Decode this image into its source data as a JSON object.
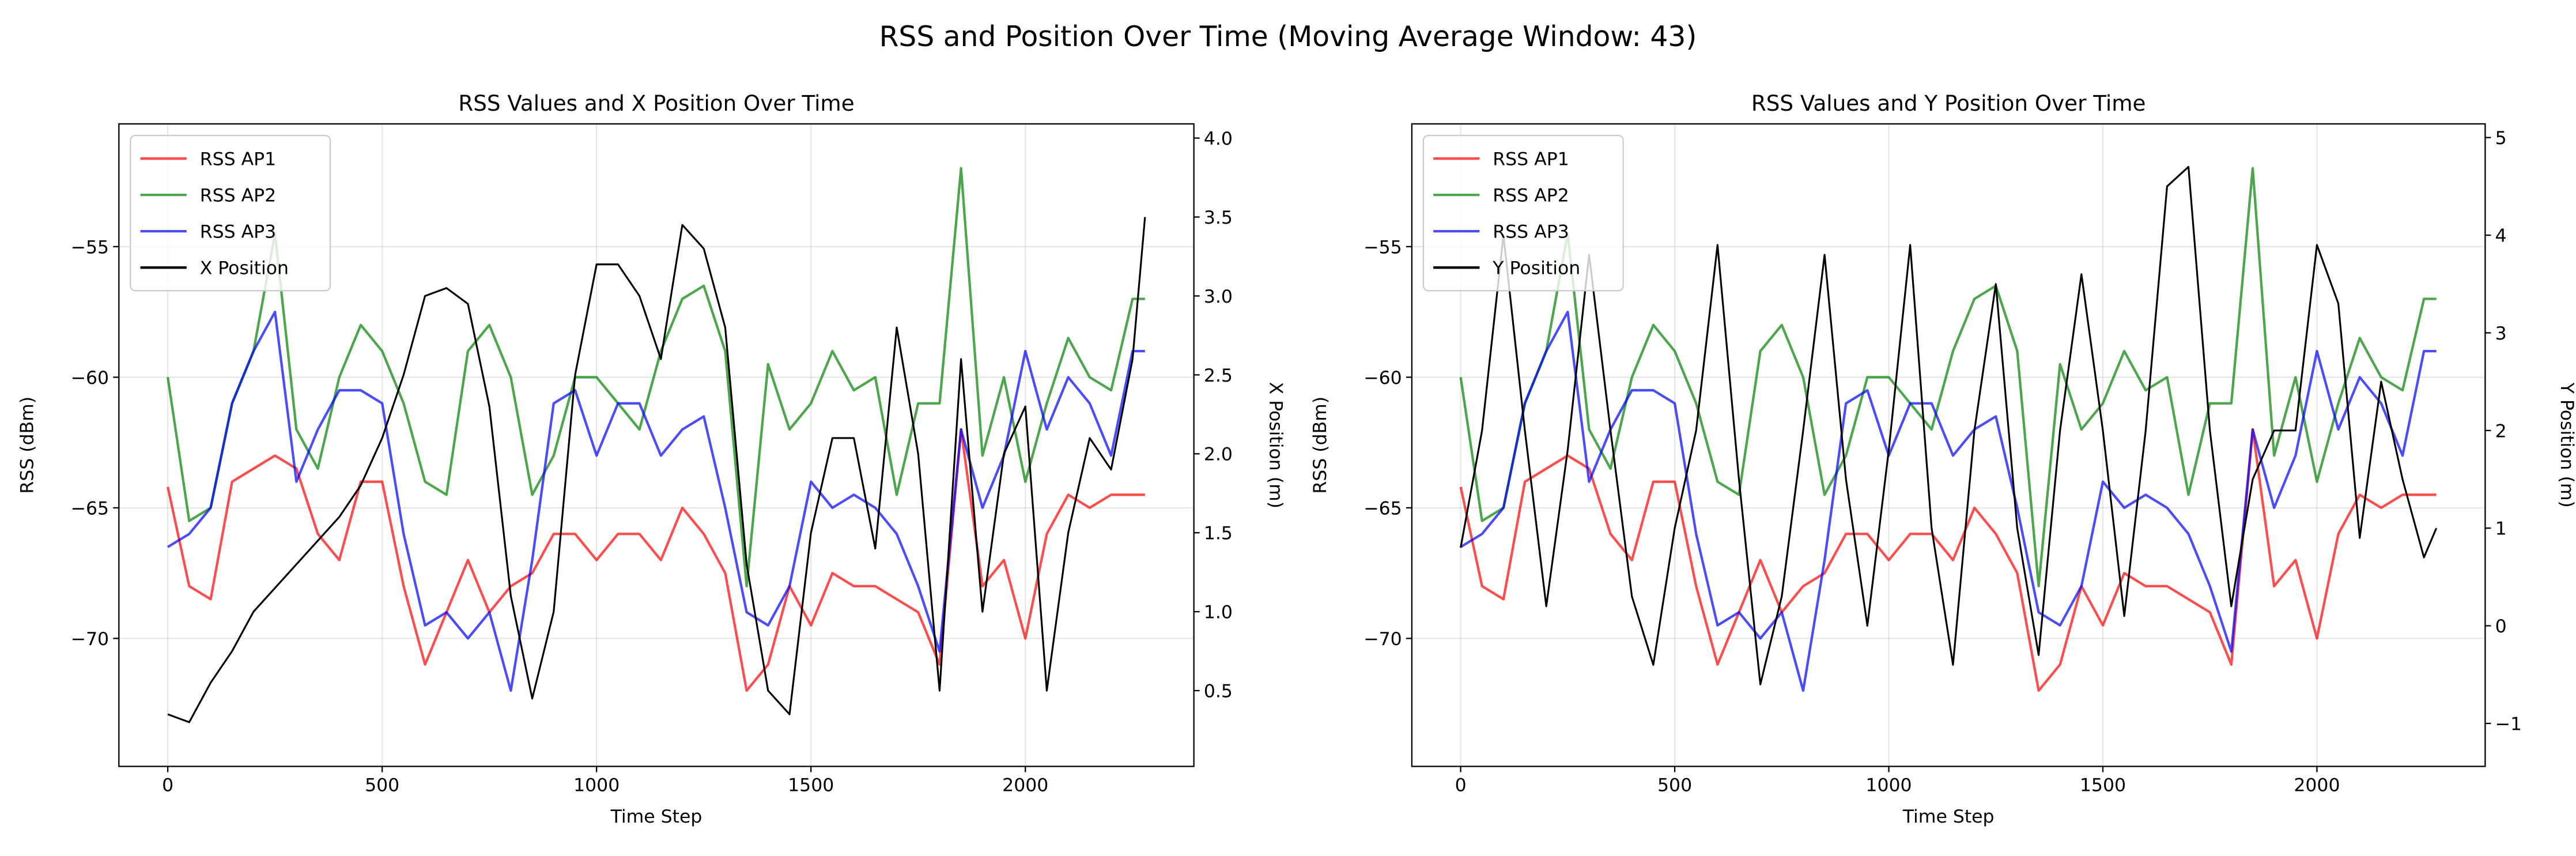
{
  "title": "RSS and Position Over Time (Moving Average Window: 43)",
  "chart_data": [
    {
      "type": "line",
      "title": "RSS Values and X Position Over Time",
      "xlabel": "Time Step",
      "ylabel": "RSS (dBm)",
      "y2label": "X Position (m)",
      "x": [
        0,
        50,
        100,
        150,
        200,
        250,
        300,
        350,
        400,
        450,
        500,
        550,
        600,
        650,
        700,
        750,
        800,
        850,
        900,
        950,
        1000,
        1050,
        1100,
        1150,
        1200,
        1250,
        1300,
        1350,
        1400,
        1450,
        1500,
        1550,
        1600,
        1650,
        1700,
        1750,
        1800,
        1850,
        1900,
        1950,
        2000,
        2050,
        2100,
        2150,
        2200,
        2250,
        2279
      ],
      "xlim": [
        -114,
        2393
      ],
      "xticks": [
        0,
        500,
        1000,
        1500,
        2000
      ],
      "ylim": [
        -74.9,
        -50.3
      ],
      "yticks": [
        {
          "value": -70,
          "label": "−70"
        },
        {
          "value": -65,
          "label": "−65"
        },
        {
          "value": -60,
          "label": "−60"
        },
        {
          "value": -55,
          "label": "−55"
        }
      ],
      "y2lim": [
        0.02,
        4.09
      ],
      "y2ticks": [
        0.5,
        {
          "value": 1,
          "label": "1.0"
        },
        1.5,
        {
          "value": 2,
          "label": "2.0"
        },
        2.5,
        {
          "value": 3,
          "label": "3.0"
        },
        3.5,
        {
          "value": 4,
          "label": "4.0"
        }
      ],
      "grid": true,
      "legend": "upper left",
      "series": [
        {
          "name": "RSS AP1",
          "color": "#ff0000",
          "alpha": 0.7,
          "values": [
            -64.2,
            -68,
            -68.5,
            -64,
            -63.5,
            -63,
            -63.5,
            -66,
            -67,
            -64,
            -64,
            -68,
            -71,
            -69,
            -67,
            -69,
            -68,
            -67.5,
            -66,
            -66,
            -67,
            -66,
            -66,
            -67,
            -65,
            -66,
            -67.5,
            -72,
            -71,
            -68,
            -69.5,
            -67.5,
            -68,
            -68,
            -68.5,
            -69,
            -71,
            -62,
            -68,
            -67,
            -70,
            -66,
            -64.5,
            -65,
            -64.5,
            -64.5,
            -64.5
          ]
        },
        {
          "name": "RSS AP2",
          "color": "#008000",
          "alpha": 0.7,
          "values": [
            -60,
            -65.5,
            -65,
            -61,
            -59,
            -54.5,
            -62,
            -63.5,
            -60,
            -58,
            -59,
            -61,
            -64,
            -64.5,
            -59,
            -58,
            -60,
            -64.5,
            -63,
            -60,
            -60,
            -61,
            -62,
            -59,
            -57,
            -56.5,
            -59,
            -68,
            -59.5,
            -62,
            -61,
            -59,
            -60.5,
            -60,
            -64.5,
            -61,
            -61,
            -52,
            -63,
            -60,
            -64,
            -61,
            -58.5,
            -60,
            -60.5,
            -57,
            -57
          ]
        },
        {
          "name": "RSS AP3",
          "color": "#0000ff",
          "alpha": 0.7,
          "values": [
            -66.5,
            -66,
            -65,
            -61,
            -59,
            -57.5,
            -64,
            -62,
            -60.5,
            -60.5,
            -61,
            -66,
            -69.5,
            -69,
            -70,
            -69,
            -72,
            -67,
            -61,
            -60.5,
            -63,
            -61,
            -61,
            -63,
            -62,
            -61.5,
            -65,
            -69,
            -69.5,
            -68,
            -64,
            -65,
            -64.5,
            -65,
            -66,
            -68,
            -70.5,
            -62,
            -65,
            -63,
            -59,
            -62,
            -60,
            -61,
            -63,
            -59,
            -59
          ]
        },
        {
          "name": "X Position",
          "color": "#000000",
          "alpha": 1,
          "axis": "y2",
          "values": [
            0.35,
            0.3,
            0.55,
            0.75,
            1.0,
            1.15,
            1.3,
            1.45,
            1.6,
            1.8,
            2.1,
            2.5,
            3.0,
            3.05,
            2.95,
            2.3,
            1.1,
            0.45,
            1.0,
            2.5,
            3.2,
            3.2,
            3.0,
            2.6,
            3.45,
            3.3,
            2.8,
            1.3,
            0.5,
            0.35,
            1.5,
            2.1,
            2.1,
            1.4,
            2.8,
            2.0,
            0.5,
            2.6,
            1.0,
            2.0,
            2.3,
            0.5,
            1.5,
            2.1,
            1.9,
            2.6,
            3.5
          ]
        }
      ]
    },
    {
      "type": "line",
      "title": "RSS Values and Y Position Over Time",
      "xlabel": "Time Step",
      "ylabel": "RSS (dBm)",
      "y2label": "Y Position (m)",
      "x": [
        0,
        50,
        100,
        150,
        200,
        250,
        300,
        350,
        400,
        450,
        500,
        550,
        600,
        650,
        700,
        750,
        800,
        850,
        900,
        950,
        1000,
        1050,
        1100,
        1150,
        1200,
        1250,
        1300,
        1350,
        1400,
        1450,
        1500,
        1550,
        1600,
        1650,
        1700,
        1750,
        1800,
        1850,
        1900,
        1950,
        2000,
        2050,
        2100,
        2150,
        2200,
        2250,
        2279
      ],
      "xlim": [
        -114,
        2393
      ],
      "xticks": [
        0,
        500,
        1000,
        1500,
        2000
      ],
      "ylim": [
        -74.9,
        -50.3
      ],
      "yticks": [
        {
          "value": -70,
          "label": "−70"
        },
        {
          "value": -65,
          "label": "−65"
        },
        {
          "value": -60,
          "label": "−60"
        },
        {
          "value": -55,
          "label": "−55"
        }
      ],
      "y2lim": [
        -1.44,
        5.14
      ],
      "y2ticks": [
        {
          "value": -1,
          "label": "−1"
        },
        0,
        1,
        2,
        3,
        4,
        5
      ],
      "grid": true,
      "legend": "upper left",
      "series": [
        {
          "name": "RSS AP1",
          "color": "#ff0000",
          "alpha": 0.7,
          "values": [
            -64.2,
            -68,
            -68.5,
            -64,
            -63.5,
            -63,
            -63.5,
            -66,
            -67,
            -64,
            -64,
            -68,
            -71,
            -69,
            -67,
            -69,
            -68,
            -67.5,
            -66,
            -66,
            -67,
            -66,
            -66,
            -67,
            -65,
            -66,
            -67.5,
            -72,
            -71,
            -68,
            -69.5,
            -67.5,
            -68,
            -68,
            -68.5,
            -69,
            -71,
            -62,
            -68,
            -67,
            -70,
            -66,
            -64.5,
            -65,
            -64.5,
            -64.5,
            -64.5
          ]
        },
        {
          "name": "RSS AP2",
          "color": "#008000",
          "alpha": 0.7,
          "values": [
            -60,
            -65.5,
            -65,
            -61,
            -59,
            -54.5,
            -62,
            -63.5,
            -60,
            -58,
            -59,
            -61,
            -64,
            -64.5,
            -59,
            -58,
            -60,
            -64.5,
            -63,
            -60,
            -60,
            -61,
            -62,
            -59,
            -57,
            -56.5,
            -59,
            -68,
            -59.5,
            -62,
            -61,
            -59,
            -60.5,
            -60,
            -64.5,
            -61,
            -61,
            -52,
            -63,
            -60,
            -64,
            -61,
            -58.5,
            -60,
            -60.5,
            -57,
            -57
          ]
        },
        {
          "name": "RSS AP3",
          "color": "#0000ff",
          "alpha": 0.7,
          "values": [
            -66.5,
            -66,
            -65,
            -61,
            -59,
            -57.5,
            -64,
            -62,
            -60.5,
            -60.5,
            -61,
            -66,
            -69.5,
            -69,
            -70,
            -69,
            -72,
            -67,
            -61,
            -60.5,
            -63,
            -61,
            -61,
            -63,
            -62,
            -61.5,
            -65,
            -69,
            -69.5,
            -68,
            -64,
            -65,
            -64.5,
            -65,
            -66,
            -68,
            -70.5,
            -62,
            -65,
            -63,
            -59,
            -62,
            -60,
            -61,
            -63,
            -59,
            -59
          ]
        },
        {
          "name": "Y Position",
          "color": "#000000",
          "alpha": 1,
          "axis": "y2",
          "values": [
            0.8,
            2.0,
            4.0,
            2.0,
            0.2,
            1.8,
            3.8,
            2.0,
            0.3,
            -0.4,
            1.0,
            2.0,
            3.9,
            1.5,
            -0.6,
            0.3,
            2.0,
            3.8,
            1.5,
            0.0,
            1.8,
            3.9,
            1.0,
            -0.4,
            2.0,
            3.5,
            1.0,
            -0.3,
            2.0,
            3.6,
            2.0,
            0.1,
            2.0,
            4.5,
            4.7,
            2.0,
            0.2,
            1.5,
            2.0,
            2.0,
            3.9,
            3.3,
            0.9,
            2.5,
            1.5,
            0.7,
            1.0
          ]
        }
      ]
    }
  ]
}
